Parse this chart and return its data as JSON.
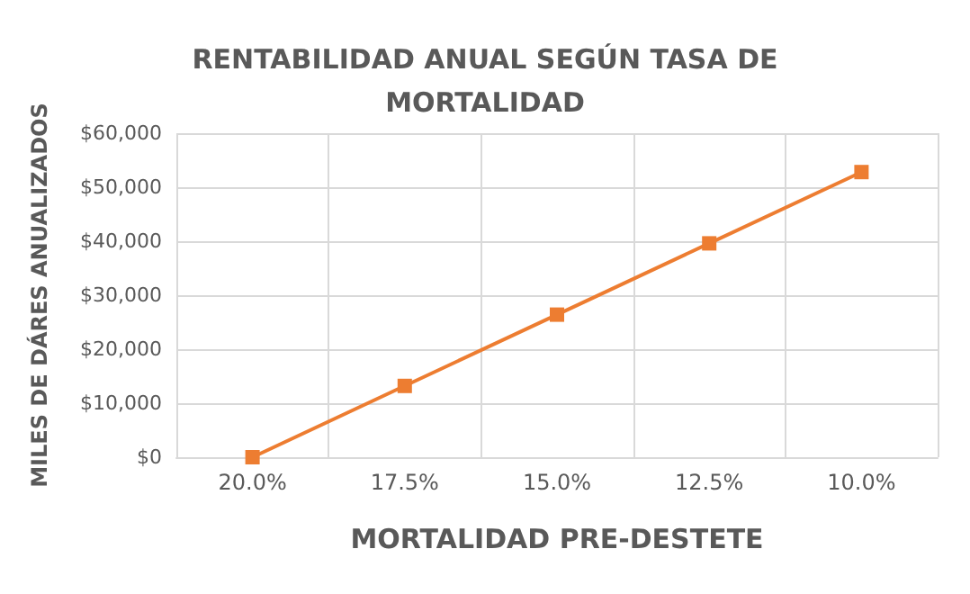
{
  "chart_data": {
    "type": "line",
    "title": "RENTABILIDAD ANUAL SEGÚN TASA DE\nMORTALIDAD",
    "xlabel": "MORTALIDAD PRE-DESTETE",
    "ylabel": "MILES DE DÁRES ANUALIZADOS",
    "categories": [
      "20.0%",
      "17.5%",
      "15.0%",
      "12.5%",
      "10.0%"
    ],
    "series": [
      {
        "color": "#ed7d31",
        "values": [
          0,
          13200,
          26400,
          39600,
          52800
        ]
      }
    ],
    "ylim": [
      0,
      60000
    ],
    "yticks": [
      {
        "value": 0,
        "label": "$0"
      },
      {
        "value": 10000,
        "label": "$10,000"
      },
      {
        "value": 20000,
        "label": "$20,000"
      },
      {
        "value": 30000,
        "label": "$30,000"
      },
      {
        "value": 40000,
        "label": "$40,000"
      },
      {
        "value": 50000,
        "label": "$50,000"
      },
      {
        "value": 60000,
        "label": "$60,000"
      }
    ],
    "grid": true,
    "marker": "square",
    "line_style": "solid"
  }
}
